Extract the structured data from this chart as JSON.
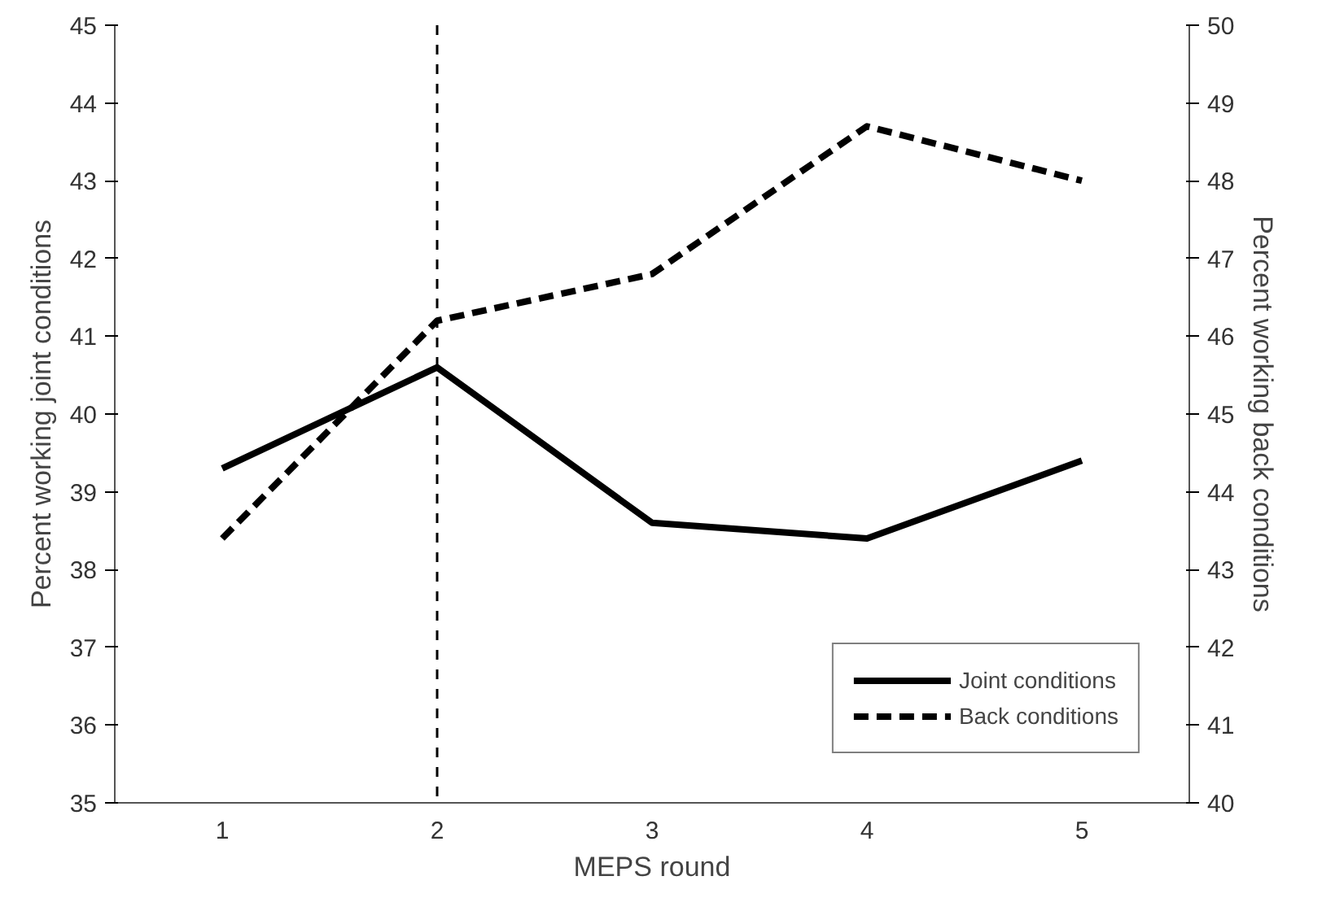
{
  "chart_data": {
    "type": "line",
    "xlabel": "MEPS round",
    "ylabel": "Percent working joint conditions",
    "y2label": "Percent working back conditions",
    "categories": [
      "1",
      "2",
      "3",
      "4",
      "5"
    ],
    "series": [
      {
        "name": "Joint conditions",
        "color": "#000000",
        "values": [
          39.3,
          40.6,
          38.6,
          38.4,
          39.4
        ],
        "line_style": "solid"
      },
      {
        "name": "Back conditions",
        "color": "#000000",
        "values": [
          43.4,
          46.2,
          46.8,
          48.7,
          48.0
        ],
        "line_style": "dashed",
        "axis": "y2"
      }
    ],
    "ylim": [
      35,
      45
    ],
    "yticks": [
      35,
      36,
      37,
      38,
      39,
      40,
      41,
      42,
      43,
      44,
      45
    ],
    "y2lim": [
      40,
      50
    ],
    "y2ticks": [
      40,
      41,
      42,
      43,
      44,
      45,
      46,
      47,
      48,
      49,
      50
    ],
    "ref_lines": [
      {
        "axis": "x",
        "value": "2",
        "color": "#000000",
        "line_style": "dashed"
      }
    ],
    "grid": false,
    "legend": "bottom right",
    "marker": "none"
  }
}
